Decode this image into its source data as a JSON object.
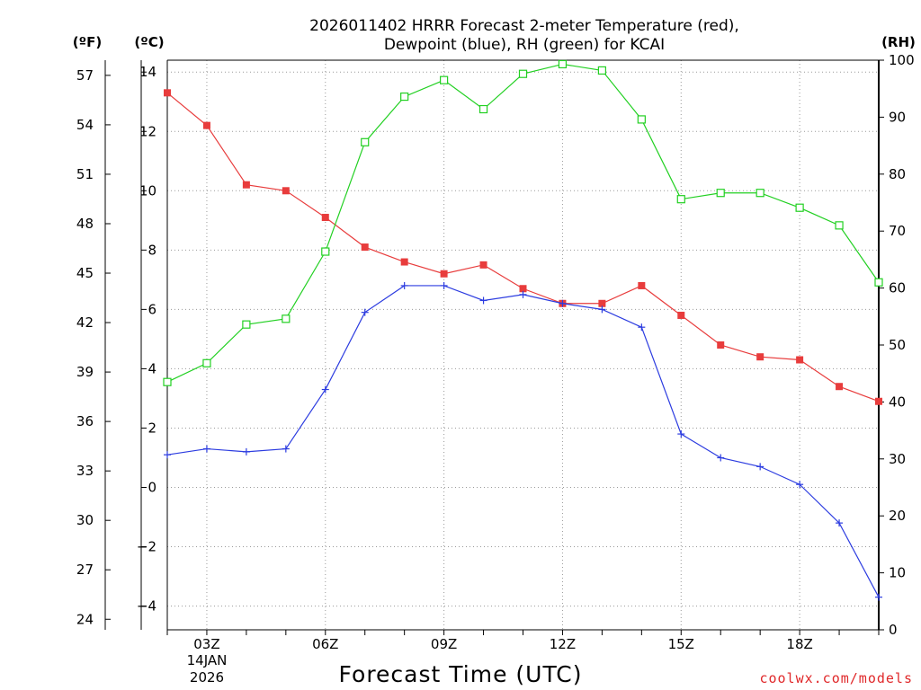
{
  "title": {
    "line1": "2026011402 HRRR Forecast 2-meter Temperature (red),",
    "line2": "Dewpoint (blue), RH (green) for KCAI"
  },
  "units": {
    "fahrenheit": "(ºF)",
    "celsius": "(ºC)",
    "rh": "(RH)"
  },
  "xaxis": {
    "title": "Forecast Time (UTC)",
    "date_line1": "14JAN",
    "date_line2": "2026"
  },
  "credit": "coolwx.com/models",
  "colors": {
    "temperature": "#e83c3c",
    "dewpoint": "#2c3ce0",
    "rh": "#22d022",
    "credit": "#e0282a"
  },
  "chart_data": {
    "type": "line",
    "title": "2026011402 HRRR Forecast 2-meter Temperature (red), Dewpoint (blue), RH (green) for KCAI",
    "xlabel": "Forecast Time (UTC)",
    "x_hours": [
      2,
      3,
      4,
      5,
      6,
      7,
      8,
      9,
      10,
      11,
      12,
      13,
      14,
      15,
      16,
      17,
      18,
      19,
      20
    ],
    "x_ticks": [
      {
        "hour": 3,
        "label": "03Z"
      },
      {
        "hour": 6,
        "label": "06Z"
      },
      {
        "hour": 9,
        "label": "09Z"
      },
      {
        "hour": 12,
        "label": "12Z"
      },
      {
        "hour": 15,
        "label": "15Z"
      },
      {
        "hour": 18,
        "label": "18Z"
      }
    ],
    "xlim": [
      2,
      20
    ],
    "ylim_c": [
      -4.8,
      14.4
    ],
    "ylim_f": [
      23.36,
      57.92
    ],
    "ylim_rh": [
      0,
      100
    ],
    "yticks_c": [
      "14",
      "12",
      "10",
      "8",
      "6",
      "4",
      "2",
      "0",
      "−2",
      "−4"
    ],
    "yticks_c_values": [
      14,
      12,
      10,
      8,
      6,
      4,
      2,
      0,
      -2,
      -4
    ],
    "yticks_f": [
      "57",
      "54",
      "51",
      "48",
      "45",
      "42",
      "39",
      "36",
      "33",
      "30",
      "27",
      "24"
    ],
    "yticks_f_values": [
      57,
      54,
      51,
      48,
      45,
      42,
      39,
      36,
      33,
      30,
      27,
      24
    ],
    "yticks_rh": [
      "100",
      "90",
      "80",
      "70",
      "60",
      "50",
      "40",
      "30",
      "20",
      "10",
      "0"
    ],
    "yticks_rh_values": [
      100,
      90,
      80,
      70,
      60,
      50,
      40,
      30,
      20,
      10,
      0
    ],
    "series": [
      {
        "name": "Temperature (°C)",
        "axis": "c",
        "marker": "square-filled",
        "values": [
          13.3,
          12.2,
          10.2,
          10.0,
          9.1,
          8.1,
          7.6,
          7.2,
          7.5,
          6.7,
          6.2,
          6.2,
          6.8,
          5.8,
          4.8,
          4.4,
          4.3,
          3.4,
          2.9
        ]
      },
      {
        "name": "Dewpoint (°C)",
        "axis": "c",
        "marker": "plus",
        "values": [
          1.1,
          1.3,
          1.2,
          1.3,
          3.3,
          5.9,
          6.8,
          6.8,
          6.3,
          6.5,
          6.2,
          6.0,
          5.4,
          1.8,
          1.0,
          0.7,
          0.1,
          -1.2,
          -3.7
        ]
      },
      {
        "name": "RH (%)",
        "axis": "rh",
        "marker": "square-open",
        "values": [
          43.5,
          46.8,
          53.6,
          54.6,
          66.4,
          85.6,
          93.6,
          96.5,
          91.4,
          97.6,
          99.3,
          98.2,
          89.6,
          75.6,
          76.7,
          76.7,
          74.1,
          71.0,
          61.0
        ]
      }
    ]
  }
}
